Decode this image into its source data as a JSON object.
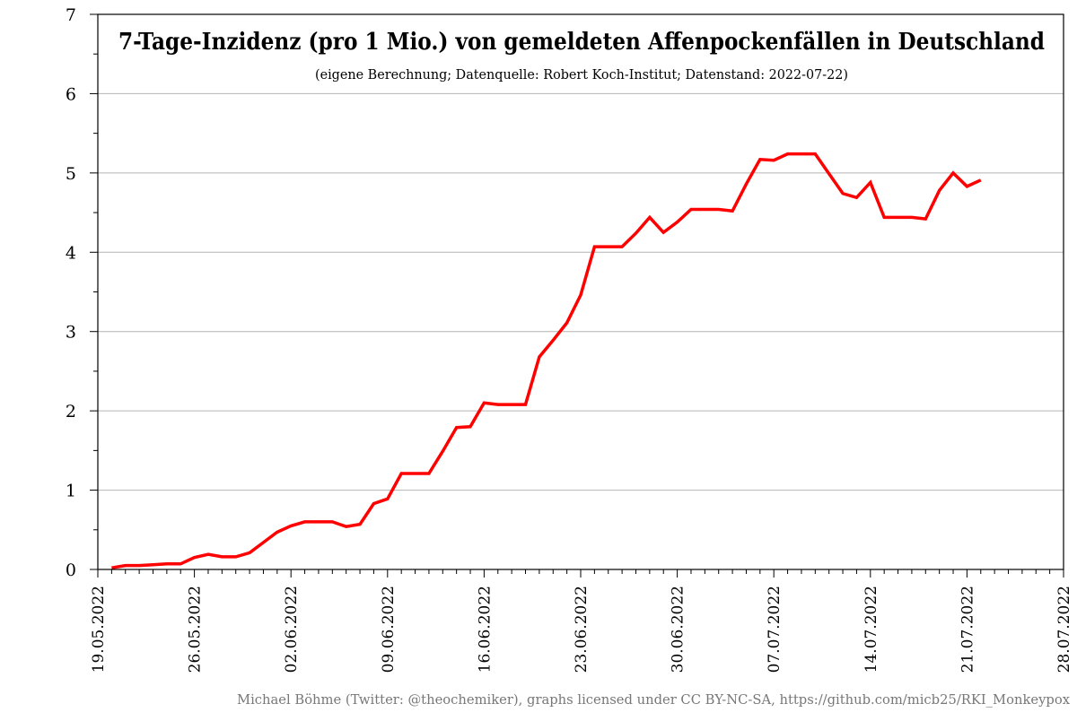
{
  "colors": {
    "series": "#ff0000",
    "grid": "#b4b4b4",
    "axis": "#000000",
    "footer": "#777777"
  },
  "footer": "Michael Böhme (Twitter: @theochemiker), graphs licensed under CC BY-NC-SA, https://github.com/micb25/RKI_Monkeypox",
  "chart_data": {
    "type": "line",
    "title": "7-Tage-Inzidenz (pro 1 Mio.) von gemeldeten Affenpockenfällen in Deutschland",
    "subtitle": "(eigene Berechnung; Datenquelle: Robert Koch-Institut; Datenstand: 2022-07-22)",
    "xlabel": "",
    "ylabel": "",
    "x_start": "2022-05-19",
    "xlim": [
      "2022-05-19",
      "2022-07-28"
    ],
    "ylim": [
      0,
      7
    ],
    "yticks": [
      0,
      1,
      2,
      3,
      4,
      5,
      6,
      7
    ],
    "xtick_labels": [
      "19.05.2022",
      "26.05.2022",
      "02.06.2022",
      "09.06.2022",
      "16.06.2022",
      "23.06.2022",
      "30.06.2022",
      "07.07.2022",
      "14.07.2022",
      "21.07.2022",
      "28.07.2022"
    ],
    "grid": "horizontal",
    "series": [
      {
        "x": [
          "2022-05-20",
          "2022-05-21",
          "2022-05-22",
          "2022-05-23",
          "2022-05-24",
          "2022-05-25",
          "2022-05-26",
          "2022-05-27",
          "2022-05-28",
          "2022-05-29",
          "2022-05-30",
          "2022-05-31",
          "2022-06-01",
          "2022-06-02",
          "2022-06-03",
          "2022-06-04",
          "2022-06-05",
          "2022-06-06",
          "2022-06-07",
          "2022-06-08",
          "2022-06-09",
          "2022-06-10",
          "2022-06-11",
          "2022-06-12",
          "2022-06-13",
          "2022-06-14",
          "2022-06-15",
          "2022-06-16",
          "2022-06-17",
          "2022-06-18",
          "2022-06-19",
          "2022-06-20",
          "2022-06-21",
          "2022-06-22",
          "2022-06-23",
          "2022-06-24",
          "2022-06-25",
          "2022-06-26",
          "2022-06-27",
          "2022-06-28",
          "2022-06-29",
          "2022-06-30",
          "2022-07-01",
          "2022-07-02",
          "2022-07-03",
          "2022-07-04",
          "2022-07-05",
          "2022-07-06",
          "2022-07-07",
          "2022-07-08",
          "2022-07-09",
          "2022-07-10",
          "2022-07-11",
          "2022-07-12",
          "2022-07-13",
          "2022-07-14",
          "2022-07-15",
          "2022-07-16",
          "2022-07-17",
          "2022-07-18",
          "2022-07-19",
          "2022-07-20",
          "2022-07-21",
          "2022-07-22"
        ],
        "values": [
          0.02,
          0.05,
          0.05,
          0.06,
          0.07,
          0.07,
          0.15,
          0.19,
          0.16,
          0.16,
          0.21,
          0.34,
          0.47,
          0.55,
          0.6,
          0.6,
          0.6,
          0.54,
          0.57,
          0.83,
          0.89,
          1.21,
          1.21,
          1.21,
          1.49,
          1.79,
          1.8,
          2.1,
          2.08,
          2.08,
          2.08,
          2.68,
          2.89,
          3.11,
          3.46,
          4.07,
          4.07,
          4.07,
          4.24,
          4.44,
          4.25,
          4.38,
          4.54,
          4.54,
          4.54,
          4.52,
          4.86,
          5.17,
          5.16,
          5.24,
          5.24,
          5.24,
          4.99,
          4.74,
          4.69,
          4.88,
          4.44,
          4.44,
          4.44,
          4.42,
          4.78,
          5.0,
          4.83,
          4.91
        ]
      }
    ]
  }
}
